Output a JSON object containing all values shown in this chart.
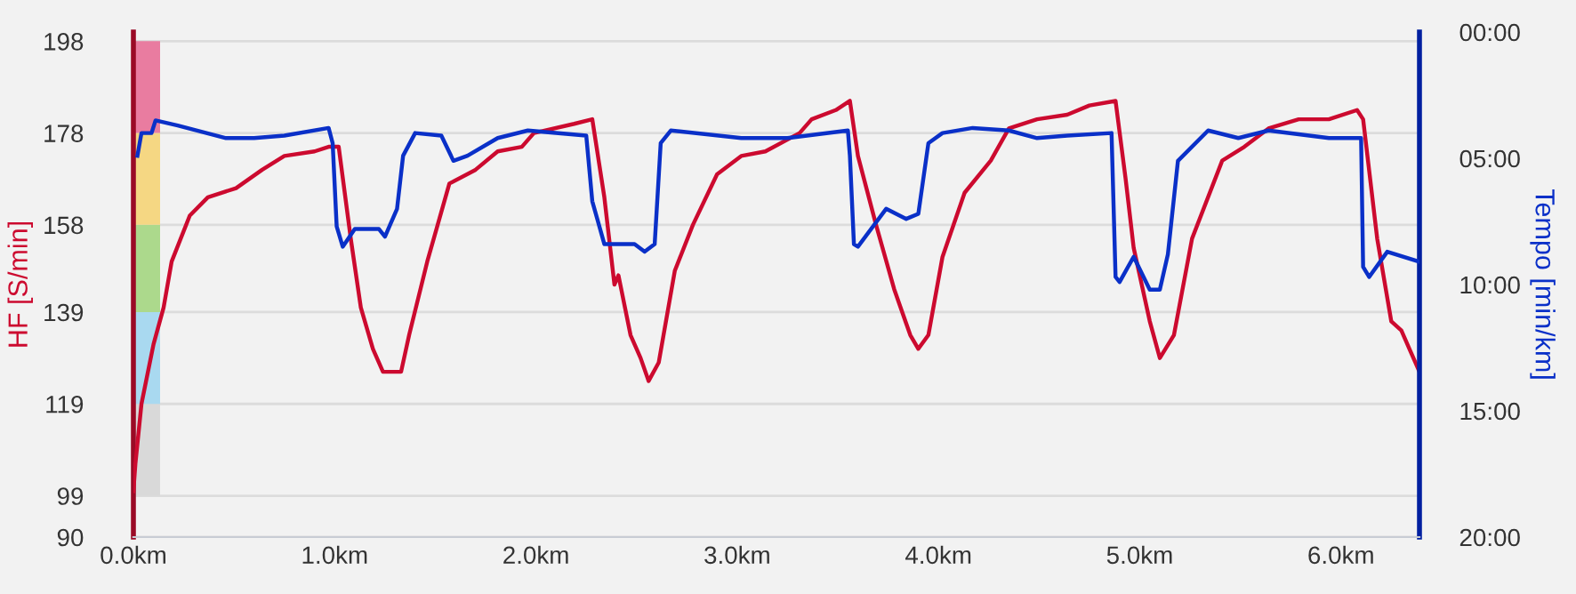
{
  "chart_data": {
    "type": "line",
    "ylabel": "HF [S/min]",
    "y2label": "Tempo [min/km]",
    "xlim": [
      0,
      6.39
    ],
    "xticks": [
      {
        "value": 0,
        "label": "0.0km"
      },
      {
        "value": 1,
        "label": "1.0km"
      },
      {
        "value": 2,
        "label": "2.0km"
      },
      {
        "value": 3,
        "label": "3.0km"
      },
      {
        "value": 4,
        "label": "4.0km"
      },
      {
        "value": 5,
        "label": "5.0km"
      },
      {
        "value": 6,
        "label": "6.0km"
      }
    ],
    "ylim": [
      90,
      200
    ],
    "yticks": [
      90,
      99,
      119,
      139,
      158,
      178,
      198
    ],
    "y2lim": [
      20,
      0
    ],
    "y2ticks": [
      {
        "value": 0,
        "label": "00:00"
      },
      {
        "value": 5,
        "label": "05:00"
      },
      {
        "value": 10,
        "label": "10:00"
      },
      {
        "value": 15,
        "label": "15:00"
      },
      {
        "value": 20,
        "label": "20:00"
      }
    ],
    "grid": "y",
    "marker": "none",
    "line_style": "solid",
    "series": [
      {
        "color": "#cc0a2f",
        "x": [
          0.0,
          0.01,
          0.04,
          0.1,
          0.15,
          0.19,
          0.28,
          0.37,
          0.51,
          0.64,
          0.75,
          0.9,
          0.97,
          1.02,
          1.08,
          1.13,
          1.19,
          1.24,
          1.33,
          1.37,
          1.46,
          1.57,
          1.7,
          1.81,
          1.93,
          1.99,
          2.19,
          2.28,
          2.34,
          2.39,
          2.41,
          2.47,
          2.52,
          2.56,
          2.61,
          2.69,
          2.78,
          2.9,
          3.02,
          3.14,
          3.31,
          3.37,
          3.49,
          3.56,
          3.6,
          3.69,
          3.78,
          3.86,
          3.9,
          3.95,
          4.02,
          4.13,
          4.26,
          4.35,
          4.49,
          4.64,
          4.75,
          4.88,
          4.93,
          4.97,
          5.05,
          5.1,
          5.17,
          5.26,
          5.41,
          5.52,
          5.64,
          5.79,
          5.94,
          6.08,
          6.11,
          6.18,
          6.25,
          6.3,
          6.34,
          6.39
        ],
        "values": [
          100,
          106,
          119,
          132,
          140,
          150,
          160,
          164,
          166,
          170,
          173,
          174,
          175,
          175,
          155,
          140,
          131,
          126,
          126,
          134,
          150,
          167,
          170,
          174,
          175,
          178,
          180,
          181,
          164,
          145,
          147,
          134,
          129,
          124,
          128,
          148,
          158,
          169,
          173,
          174,
          178,
          181,
          183,
          185,
          173,
          158,
          144,
          134,
          131,
          134,
          151,
          165,
          172,
          179,
          181,
          182,
          184,
          185,
          168,
          153,
          137,
          129,
          134,
          155,
          172,
          175,
          179,
          181,
          181,
          183,
          181,
          155,
          137,
          135,
          131,
          126
        ]
      },
      {
        "color": "#0a30c8",
        "axis": "y2",
        "x": [
          0.02,
          0.04,
          0.09,
          0.11,
          0.22,
          0.46,
          0.6,
          0.75,
          0.97,
          0.99,
          1.01,
          1.04,
          1.1,
          1.22,
          1.25,
          1.31,
          1.34,
          1.4,
          1.53,
          1.59,
          1.66,
          1.81,
          1.96,
          2.25,
          2.28,
          2.34,
          2.49,
          2.54,
          2.59,
          2.62,
          2.67,
          3.02,
          3.25,
          3.55,
          3.56,
          3.58,
          3.6,
          3.74,
          3.84,
          3.9,
          3.95,
          4.02,
          4.17,
          4.35,
          4.49,
          4.64,
          4.86,
          4.88,
          4.9,
          4.97,
          5.05,
          5.1,
          5.14,
          5.19,
          5.34,
          5.49,
          5.64,
          5.94,
          6.1,
          6.11,
          6.14,
          6.23,
          6.39
        ],
        "values": [
          4.9,
          4.0,
          4.0,
          3.5,
          3.7,
          4.2,
          4.2,
          4.1,
          3.8,
          4.4,
          7.7,
          8.5,
          7.8,
          7.8,
          8.1,
          7.0,
          4.9,
          4.0,
          4.1,
          5.1,
          4.9,
          4.2,
          3.9,
          4.1,
          6.7,
          8.4,
          8.4,
          8.7,
          8.4,
          4.4,
          3.9,
          4.2,
          4.2,
          3.9,
          4.9,
          8.4,
          8.5,
          7.0,
          7.4,
          7.2,
          4.4,
          4.0,
          3.8,
          3.9,
          4.2,
          4.1,
          4.0,
          9.7,
          9.9,
          8.9,
          10.2,
          10.2,
          8.8,
          5.1,
          3.9,
          4.2,
          3.9,
          4.2,
          4.2,
          9.3,
          9.7,
          8.7,
          9.1
        ]
      }
    ]
  }
}
